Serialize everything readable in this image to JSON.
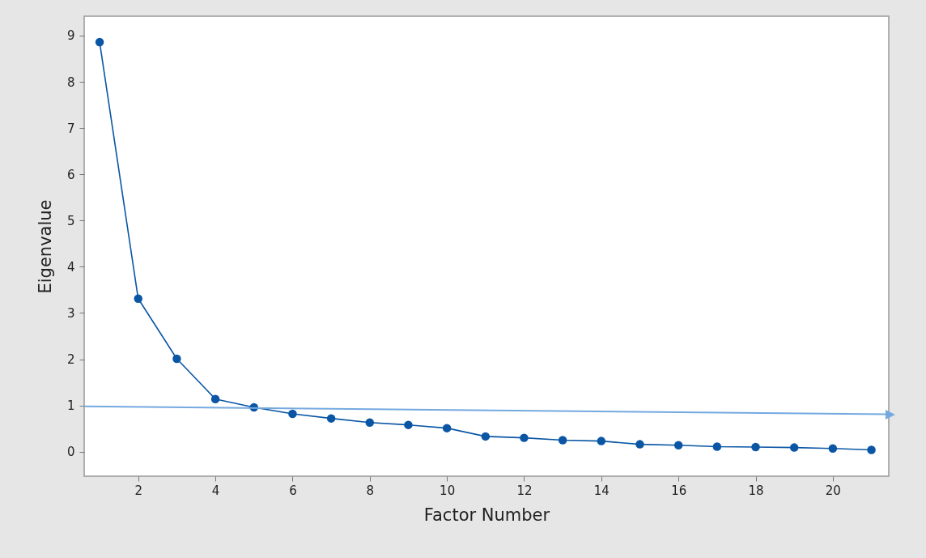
{
  "chart_data": {
    "type": "line",
    "xlabel": "Factor Number",
    "ylabel": "Eigenvalue",
    "x": [
      1,
      2,
      3,
      4,
      5,
      6,
      7,
      8,
      9,
      10,
      11,
      12,
      13,
      14,
      15,
      16,
      17,
      18,
      19,
      20,
      21
    ],
    "series": [
      {
        "color": "#0a56a5",
        "values": [
          8.86,
          3.31,
          2.01,
          1.14,
          0.96,
          0.82,
          0.72,
          0.63,
          0.58,
          0.51,
          0.33,
          0.3,
          0.25,
          0.23,
          0.16,
          0.14,
          0.11,
          0.1,
          0.09,
          0.07,
          0.04
        ],
        "marker": "circle"
      },
      {
        "color": "#74a9e0",
        "x": [
          0.6,
          21.4
        ],
        "values": [
          0.98,
          0.81
        ]
      }
    ],
    "xlim": [
      0.6,
      21.45
    ],
    "ylim": [
      -0.53,
      9.42
    ],
    "xticks": [
      2,
      4,
      6,
      8,
      10,
      12,
      14,
      16,
      18,
      20
    ],
    "yticks": [
      0,
      1,
      2,
      3,
      4,
      5,
      6,
      7,
      8,
      9
    ],
    "tick_labels": "xy"
  }
}
